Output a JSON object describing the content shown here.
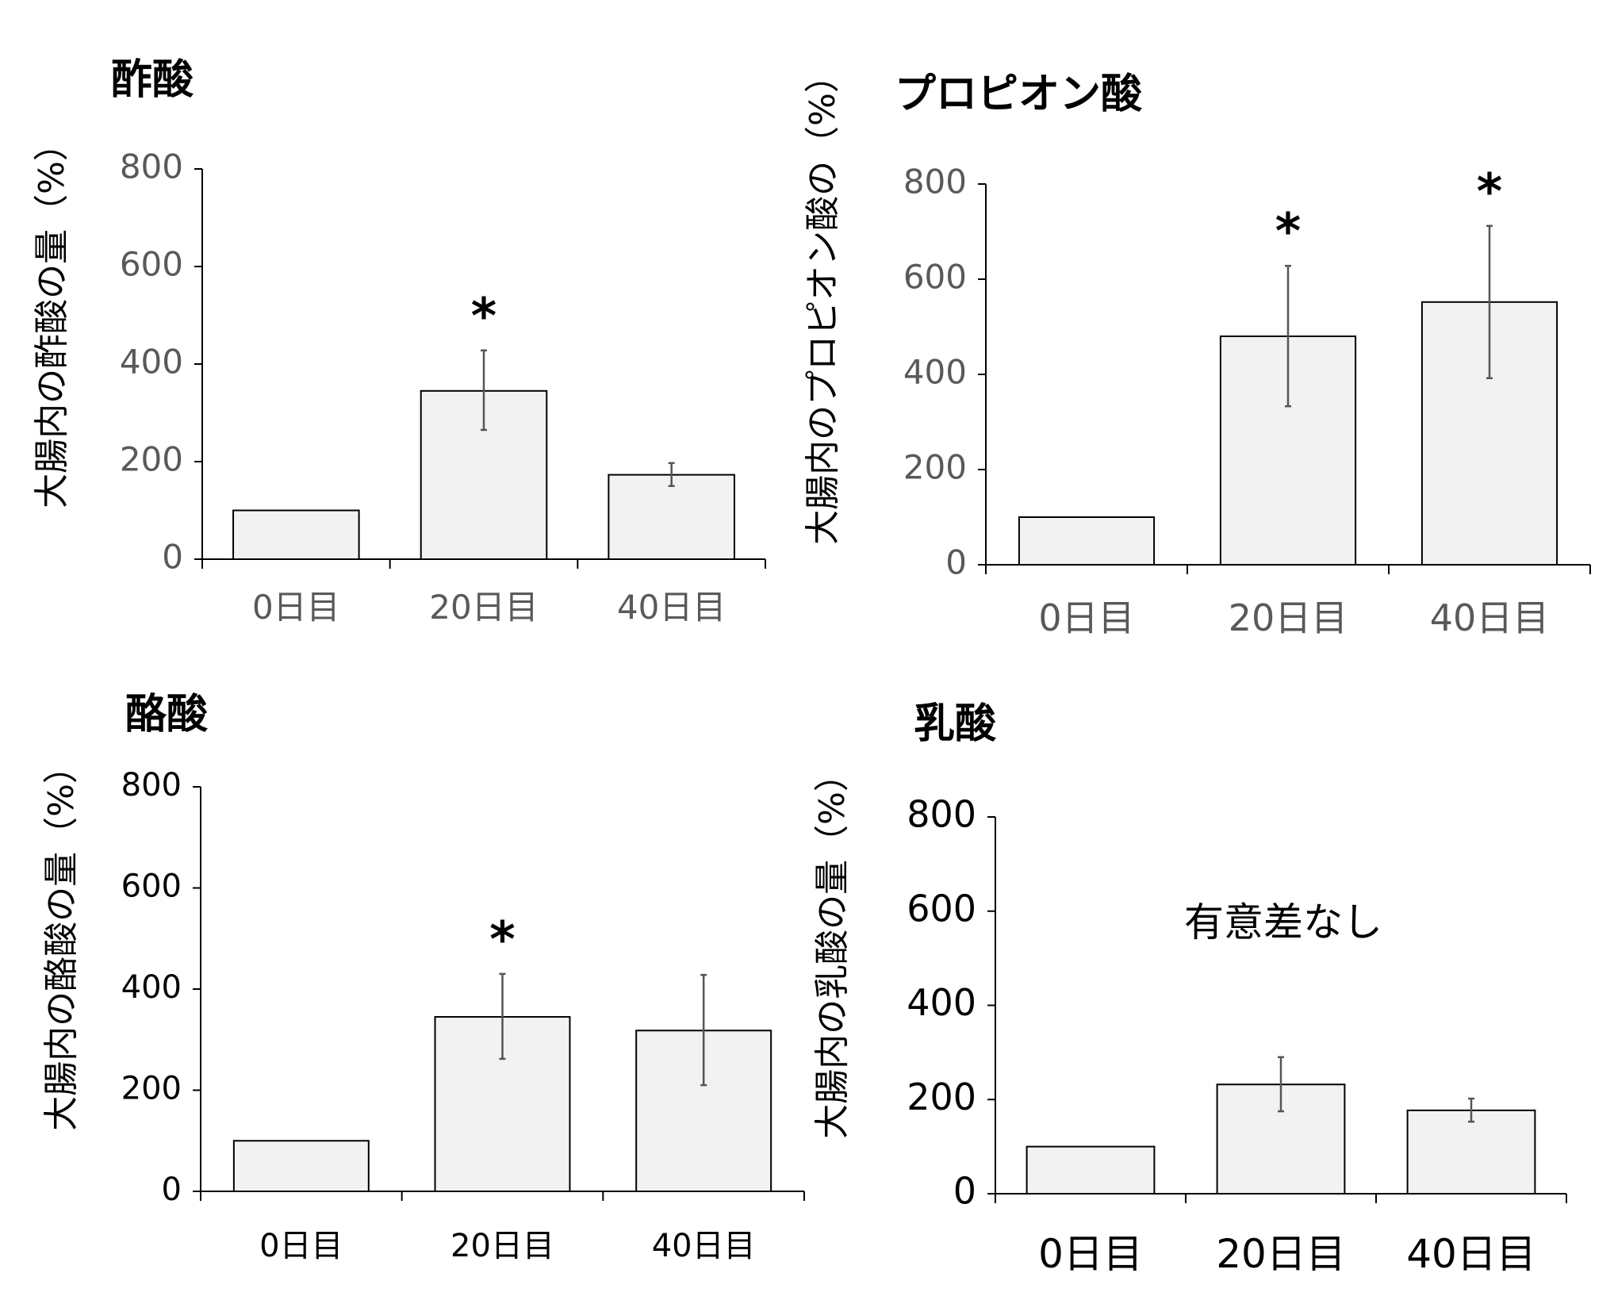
{
  "figure": {
    "colors": {
      "bar_fill": "#f2f2f2",
      "bar_stroke": "#000000",
      "axis": "#000000",
      "error_bar": "#555555"
    }
  },
  "chart_data": [
    {
      "type": "bar",
      "title": "酢酸",
      "ylabel": "大腸内の酢酸の量（%）",
      "xlabel": "",
      "categories": [
        "0日目",
        "20日目",
        "40日目"
      ],
      "values": [
        100,
        345,
        173
      ],
      "error_low": [
        100,
        265,
        150
      ],
      "error_high": [
        100,
        428,
        197
      ],
      "significance": [
        "",
        "*",
        ""
      ],
      "yticks": [
        "0",
        "200",
        "400",
        "600",
        "800"
      ],
      "ylim": [
        0,
        800
      ],
      "annotation": "",
      "tick_color": "#595959",
      "grid": false,
      "legend": "none"
    },
    {
      "type": "bar",
      "title": "プロピオン酸",
      "ylabel": "大腸内のプロピオン酸の（%）",
      "xlabel": "",
      "categories": [
        "0日目",
        "20日目",
        "40日目"
      ],
      "values": [
        100,
        480,
        552
      ],
      "error_low": [
        100,
        333,
        392
      ],
      "error_high": [
        100,
        628,
        712
      ],
      "significance": [
        "",
        "*",
        "*"
      ],
      "yticks": [
        "0",
        "200",
        "400",
        "600",
        "800"
      ],
      "ylim": [
        0,
        800
      ],
      "annotation": "",
      "tick_color": "#595959",
      "grid": false,
      "legend": "none"
    },
    {
      "type": "bar",
      "title": "酪酸",
      "ylabel": "大腸内の酪酸の量（%）",
      "xlabel": "",
      "categories": [
        "0日目",
        "20日目",
        "40日目"
      ],
      "values": [
        100,
        345,
        318
      ],
      "error_low": [
        100,
        262,
        210
      ],
      "error_high": [
        100,
        430,
        428
      ],
      "significance": [
        "",
        "*",
        ""
      ],
      "yticks": [
        "0",
        "200",
        "400",
        "600",
        "800"
      ],
      "ylim": [
        0,
        800
      ],
      "annotation": "",
      "tick_color": "#000000",
      "grid": false,
      "legend": "none"
    },
    {
      "type": "bar",
      "title": "乳酸",
      "ylabel": "大腸内の乳酸の量（%）",
      "xlabel": "",
      "categories": [
        "0日目",
        "20日目",
        "40日目"
      ],
      "values": [
        100,
        232,
        177
      ],
      "error_low": [
        100,
        175,
        153
      ],
      "error_high": [
        100,
        290,
        202
      ],
      "significance": [
        "",
        "",
        ""
      ],
      "yticks": [
        "0",
        "200",
        "400",
        "600",
        "800"
      ],
      "ylim": [
        0,
        800
      ],
      "annotation": "有意差なし",
      "tick_color": "#000000",
      "grid": false,
      "legend": "none"
    }
  ]
}
